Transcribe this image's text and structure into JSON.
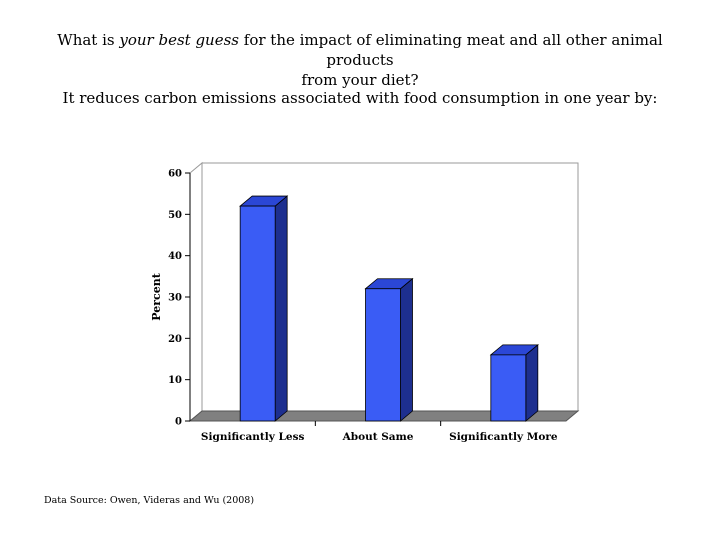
{
  "heading": {
    "question_before": "What is ",
    "question_emphasis": "your best guess",
    "question_after": " for the impact of eliminating meat and all other animal products",
    "question_line2": "from your diet?",
    "statement": "It reduces carbon emissions associated with food consumption in one year by:"
  },
  "chart_data": {
    "type": "bar",
    "categories": [
      "Significantly Less",
      "About Same",
      "Significantly More"
    ],
    "values": [
      52,
      32,
      16
    ],
    "ylabel": "Percent",
    "xlabel": "",
    "ylim": [
      0,
      60
    ],
    "yticks": [
      "0",
      "10",
      "20",
      "30",
      "40",
      "50",
      "60"
    ],
    "grid": false,
    "style": "3d",
    "colors": {
      "bar_front": "#3a5cf5",
      "bar_top": "#2b47d6",
      "bar_side": "#1d2f8f",
      "floor": "#808080"
    }
  },
  "source": "Data Source: Owen, Videras and Wu (2008)"
}
